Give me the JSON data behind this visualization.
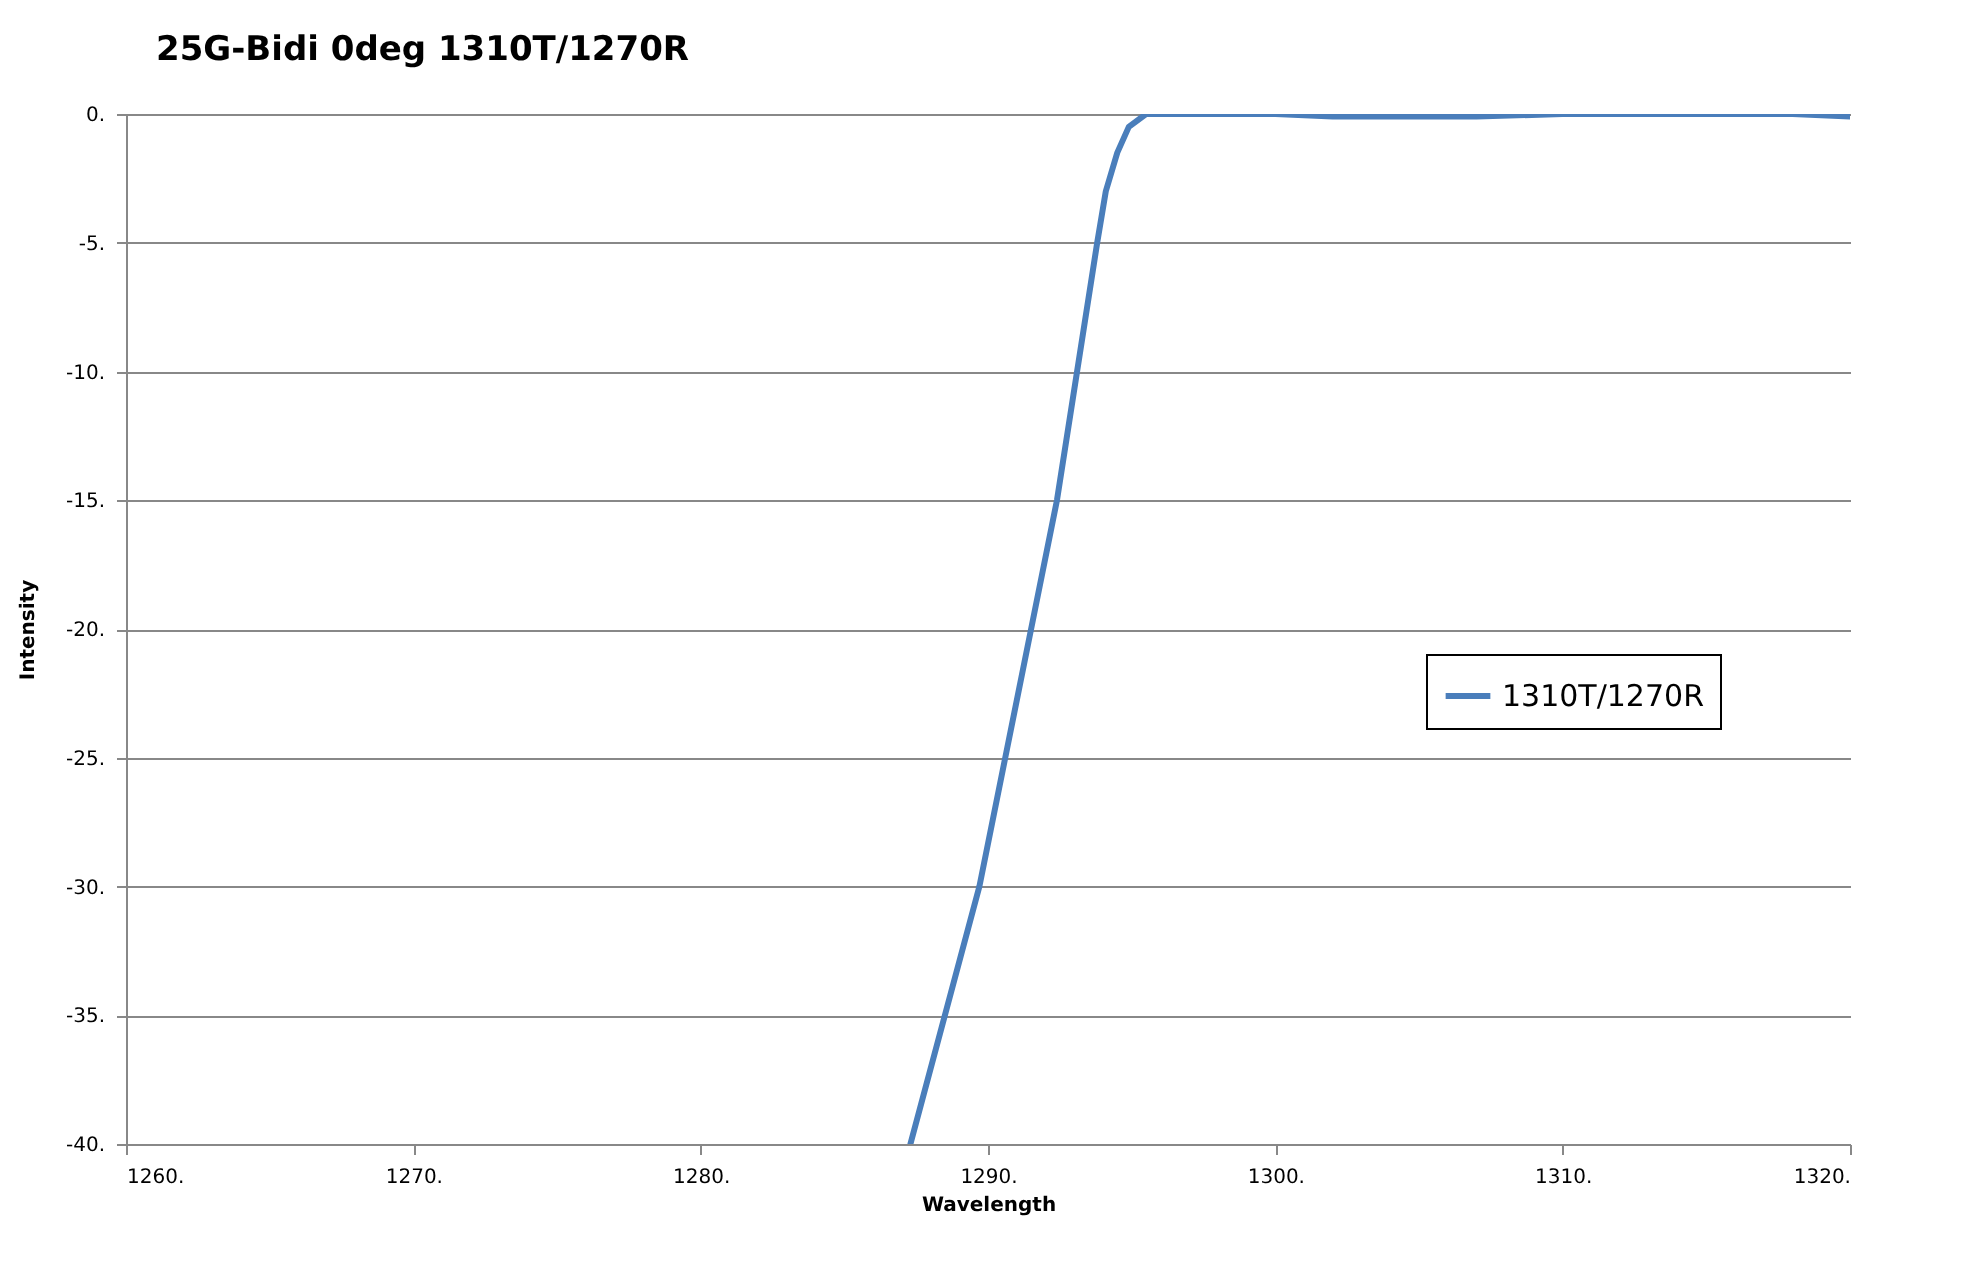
{
  "chart_data": {
    "type": "line",
    "title": "25G-Bidi 0deg 1310T/1270R",
    "xlabel": "Wavelength",
    "ylabel": "Intensity",
    "x": [
      1287.3,
      1288.5,
      1289.7,
      1290.6,
      1291.5,
      1292.4,
      1293.1,
      1293.8,
      1294.1,
      1294.5,
      1294.9,
      1295.5,
      1300,
      1302,
      1307,
      1310,
      1318,
      1320
    ],
    "series": [
      {
        "name": "1310T/1270R",
        "color": "#4a7ebb",
        "values": [
          -40,
          -35,
          -30,
          -25,
          -20,
          -15,
          -10,
          -5,
          -3,
          -1.5,
          -0.5,
          0,
          0,
          -0.1,
          -0.1,
          0,
          0,
          -0.1
        ]
      }
    ],
    "xlim": [
      1260,
      1320
    ],
    "ylim": [
      -40,
      0
    ],
    "xticks": [
      {
        "value": 1260,
        "label": "1260."
      },
      {
        "value": 1270,
        "label": "1270."
      },
      {
        "value": 1280,
        "label": "1280."
      },
      {
        "value": 1290,
        "label": "1290."
      },
      {
        "value": 1300,
        "label": "1300."
      },
      {
        "value": 1310,
        "label": "1310."
      },
      {
        "value": 1320,
        "label": "1320."
      }
    ],
    "yticks": [
      {
        "value": 0,
        "label": "0."
      },
      {
        "value": -5,
        "label": "-5."
      },
      {
        "value": -10,
        "label": "-10."
      },
      {
        "value": -15,
        "label": "-15."
      },
      {
        "value": -20,
        "label": "-20."
      },
      {
        "value": -25,
        "label": "-25."
      },
      {
        "value": -30,
        "label": "-30."
      },
      {
        "value": -35,
        "label": "-35."
      },
      {
        "value": -40,
        "label": "-40."
      }
    ],
    "grid": "y",
    "legend": "right",
    "marker": "none",
    "line_style": "solid"
  }
}
